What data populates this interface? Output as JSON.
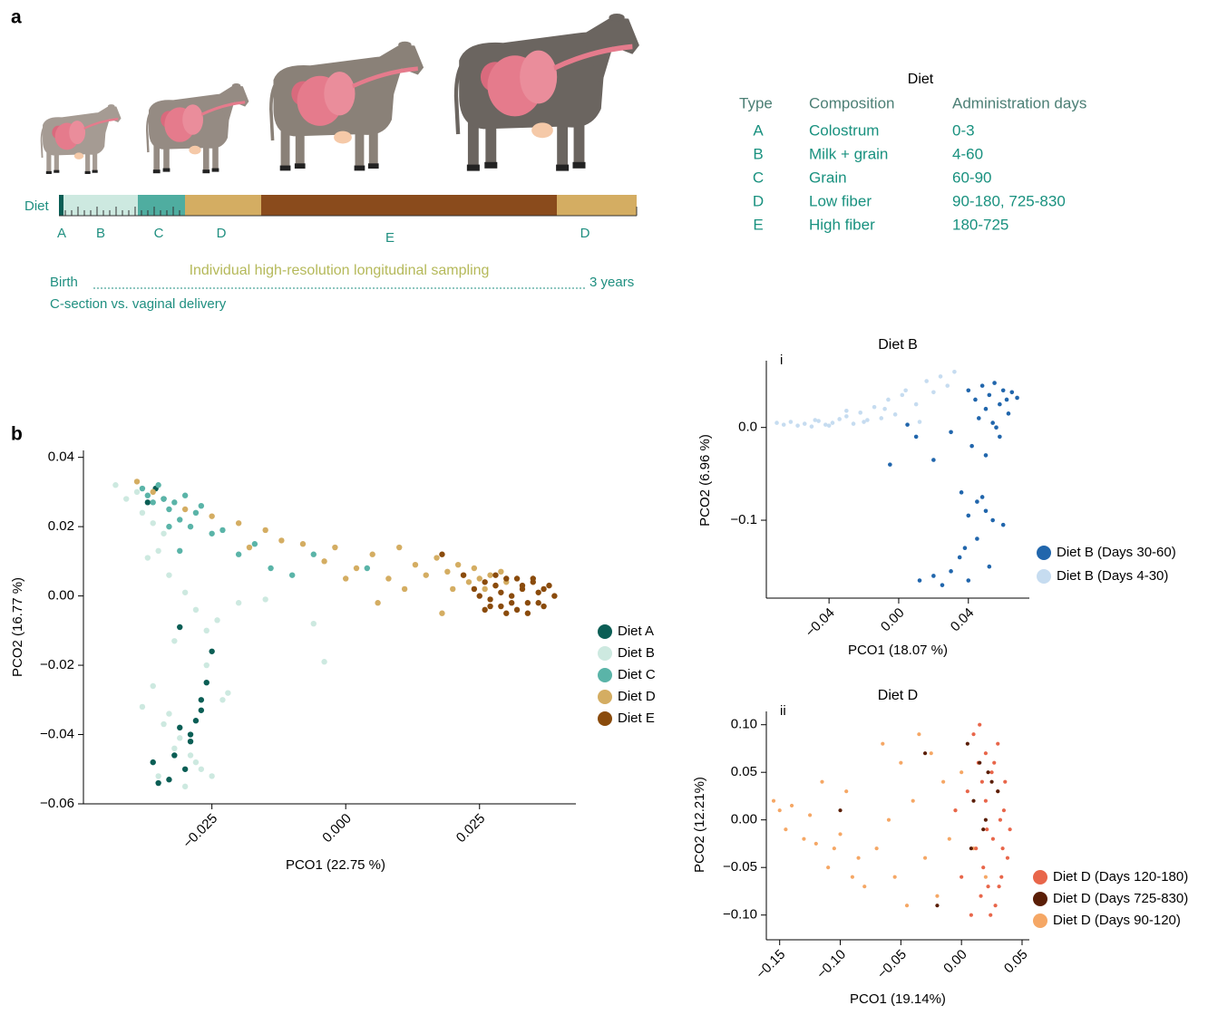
{
  "panel_a": {
    "label": "a",
    "timeline": {
      "label": "Diet",
      "segments": [
        {
          "label": "A",
          "color": "#0b5e55"
        },
        {
          "label": "B",
          "color": "#cde9e0"
        },
        {
          "label": "C",
          "color": "#4fada0"
        },
        {
          "label": "D",
          "color": "#d4ad62"
        },
        {
          "label": "E",
          "color": "#8a4b1c"
        },
        {
          "label": "D",
          "color": "#d4ad62"
        }
      ]
    },
    "span": {
      "start": "Birth",
      "caption": "Individual high-resolution longitudinal sampling",
      "end": "3 years",
      "note": "C-section vs. vaginal delivery"
    },
    "diet_table": {
      "title": "Diet",
      "columns": [
        "Type",
        "Composition",
        "Administration days"
      ],
      "rows": [
        [
          "A",
          "Colostrum",
          "0-3"
        ],
        [
          "B",
          "Milk + grain",
          "4-60"
        ],
        [
          "C",
          "Grain",
          "60-90"
        ],
        [
          "D",
          "Low fiber",
          "90-180, 725-830"
        ],
        [
          "E",
          "High fiber",
          "180-725"
        ]
      ]
    }
  },
  "panel_b": {
    "label": "b"
  },
  "chart_data": [
    {
      "type": "scatter",
      "xlabel": "PCO1 (22.75 %)",
      "ylabel": "PCO2 (16.77 %)",
      "xlim": [
        -0.049,
        0.043
      ],
      "ylim": [
        -0.06,
        0.042
      ],
      "xticks": [
        {
          "value": -0.025,
          "label": "−0.025"
        },
        {
          "value": 0,
          "label": "0.000"
        },
        0.025
      ],
      "yticks": [
        0.04,
        0.02,
        {
          "value": 0,
          "label": "0.00"
        },
        {
          "value": -0.02,
          "label": "−0.02"
        },
        {
          "value": -0.04,
          "label": "−0.04"
        },
        {
          "value": -0.06,
          "label": "−0.06"
        }
      ],
      "legend": "right",
      "series": [
        {
          "name": "Diet B",
          "color": "#cde9e0",
          "x": [
            -0.043,
            -0.041,
            -0.039,
            -0.038,
            -0.036,
            -0.034,
            -0.035,
            -0.033,
            -0.037,
            -0.03,
            -0.028,
            -0.032,
            -0.026,
            -0.024,
            -0.02,
            -0.015,
            -0.006,
            -0.004,
            -0.036,
            -0.033,
            -0.031,
            -0.029,
            -0.027,
            -0.025,
            -0.023,
            -0.034,
            -0.032,
            -0.03,
            -0.028,
            -0.038,
            -0.026,
            -0.022,
            -0.035
          ],
          "y": [
            0.032,
            0.028,
            0.03,
            0.024,
            0.021,
            0.018,
            0.013,
            0.006,
            0.011,
            0.001,
            -0.004,
            -0.013,
            -0.01,
            -0.007,
            -0.002,
            -0.001,
            -0.008,
            -0.019,
            -0.026,
            -0.034,
            -0.041,
            -0.046,
            -0.05,
            -0.052,
            -0.03,
            -0.037,
            -0.044,
            -0.055,
            -0.048,
            -0.032,
            -0.02,
            -0.028,
            -0.052
          ]
        },
        {
          "name": "Diet A",
          "color": "#0b5e55",
          "x": [
            -0.0355,
            -0.034,
            -0.037,
            -0.031,
            -0.029,
            -0.027,
            -0.026,
            -0.028,
            -0.032,
            -0.03,
            -0.033,
            -0.035,
            -0.029,
            -0.031,
            -0.027,
            -0.025,
            -0.036
          ],
          "y": [
            0.031,
            0.028,
            0.027,
            -0.009,
            -0.04,
            -0.03,
            -0.025,
            -0.036,
            -0.046,
            -0.05,
            -0.053,
            -0.054,
            -0.042,
            -0.038,
            -0.033,
            -0.016,
            -0.048
          ]
        },
        {
          "name": "Diet C",
          "color": "#5ab4a8",
          "x": [
            -0.038,
            -0.037,
            -0.036,
            -0.035,
            -0.034,
            -0.033,
            -0.032,
            -0.031,
            -0.03,
            -0.029,
            -0.028,
            -0.027,
            -0.025,
            -0.023,
            -0.02,
            -0.017,
            -0.014,
            -0.01,
            -0.006,
            0.004,
            -0.033,
            -0.031
          ],
          "y": [
            0.031,
            0.029,
            0.027,
            0.032,
            0.028,
            0.025,
            0.027,
            0.022,
            0.029,
            0.02,
            0.024,
            0.026,
            0.018,
            0.019,
            0.012,
            0.015,
            0.008,
            0.006,
            0.012,
            0.008,
            0.02,
            0.013
          ]
        },
        {
          "name": "Diet D",
          "color": "#d4ad62",
          "x": [
            -0.039,
            -0.036,
            -0.03,
            -0.025,
            -0.02,
            -0.018,
            -0.015,
            -0.012,
            -0.008,
            -0.004,
            -0.002,
            0.002,
            0.005,
            0.008,
            0.01,
            0.013,
            0.015,
            0.017,
            0.019,
            0.02,
            0.021,
            0.022,
            0.023,
            0.024,
            0.025,
            0.026,
            0.027,
            0.028,
            0.029,
            0.03,
            0.018,
            0.011,
            0.006,
            0.0
          ],
          "y": [
            0.033,
            0.03,
            0.025,
            0.023,
            0.021,
            0.014,
            0.019,
            0.016,
            0.015,
            0.01,
            0.014,
            0.008,
            0.012,
            0.005,
            0.014,
            0.009,
            0.006,
            0.011,
            0.007,
            0.002,
            0.009,
            0.006,
            0.004,
            0.008,
            0.005,
            0.002,
            0.006,
            0.003,
            0.007,
            0.004,
            -0.005,
            0.002,
            -0.002,
            0.005
          ]
        },
        {
          "name": "Diet E",
          "color": "#8a4b0c",
          "x": [
            0.018,
            0.022,
            0.024,
            0.026,
            0.027,
            0.028,
            0.029,
            0.03,
            0.031,
            0.032,
            0.033,
            0.034,
            0.035,
            0.036,
            0.037,
            0.038,
            0.039,
            0.026,
            0.028,
            0.03,
            0.032,
            0.034,
            0.036,
            0.025,
            0.029,
            0.033,
            0.037,
            0.031,
            0.035,
            0.027
          ],
          "y": [
            0.012,
            0.006,
            0.002,
            0.004,
            -0.001,
            0.003,
            -0.003,
            0.005,
            0.0,
            -0.004,
            0.002,
            -0.002,
            0.004,
            0.001,
            -0.003,
            0.003,
            0.0,
            -0.004,
            0.006,
            -0.005,
            0.005,
            -0.005,
            -0.002,
            0.0,
            0.001,
            0.003,
            0.002,
            -0.002,
            0.005,
            -0.003
          ]
        }
      ]
    },
    {
      "type": "scatter",
      "title": "Diet B",
      "panel_label": "i",
      "xlabel": "PCO1 (18.07 %)",
      "ylabel": "PCO2 (6.96 %)",
      "xlim": [
        -0.076,
        0.075
      ],
      "ylim": [
        -0.184,
        0.072
      ],
      "xticks": [
        {
          "value": -0.04,
          "label": "−0.04"
        },
        {
          "value": 0,
          "label": "0.00"
        },
        0.04
      ],
      "yticks": [
        {
          "value": 0,
          "label": "0.0"
        },
        {
          "value": -0.1,
          "label": "−0.1"
        }
      ],
      "legend": "lower right",
      "series": [
        {
          "name": "Diet B (Days 4-30)",
          "color": "#c6dcf0",
          "x": [
            -0.07,
            -0.066,
            -0.062,
            -0.058,
            -0.054,
            -0.05,
            -0.046,
            -0.042,
            -0.038,
            -0.034,
            -0.03,
            -0.026,
            -0.022,
            -0.018,
            -0.014,
            -0.01,
            -0.006,
            -0.002,
            0.004,
            0.01,
            0.016,
            0.02,
            0.024,
            0.028,
            0.032,
            -0.048,
            -0.04,
            -0.03,
            -0.02,
            -0.008,
            0.002,
            0.012
          ],
          "y": [
            0.005,
            0.003,
            0.006,
            0.002,
            0.004,
            0.001,
            0.007,
            0.003,
            0.005,
            0.009,
            0.012,
            0.004,
            0.016,
            0.008,
            0.022,
            0.01,
            0.03,
            0.014,
            0.04,
            0.025,
            0.05,
            0.038,
            0.055,
            0.045,
            0.06,
            0.008,
            0.002,
            0.018,
            0.006,
            0.02,
            0.035,
            0.006
          ]
        },
        {
          "name": "Diet B (Days 30-60)",
          "color": "#2166ac",
          "x": [
            0.04,
            0.044,
            0.048,
            0.05,
            0.052,
            0.055,
            0.058,
            0.06,
            0.062,
            0.065,
            0.068,
            0.046,
            0.054,
            0.058,
            0.063,
            0.042,
            0.05,
            0.056,
            0.03,
            0.02,
            0.01,
            0.005,
            -0.005,
            0.036,
            0.045,
            0.04,
            0.05,
            0.054,
            0.06,
            0.035,
            0.045,
            0.052,
            0.04,
            0.03,
            0.02,
            0.012,
            0.025,
            0.048,
            0.038
          ],
          "y": [
            0.04,
            0.03,
            0.045,
            0.02,
            0.035,
            0.048,
            0.025,
            0.04,
            0.03,
            0.038,
            0.032,
            0.01,
            0.005,
            -0.01,
            0.015,
            -0.02,
            -0.03,
            0.0,
            -0.005,
            -0.035,
            -0.01,
            0.003,
            -0.04,
            -0.07,
            -0.08,
            -0.095,
            -0.09,
            -0.1,
            -0.105,
            -0.14,
            -0.12,
            -0.15,
            -0.165,
            -0.155,
            -0.16,
            -0.165,
            -0.17,
            -0.075,
            -0.13
          ]
        }
      ]
    },
    {
      "type": "scatter",
      "title": "Diet D",
      "panel_label": "ii",
      "xlabel": "PCO1 (19.14%)",
      "ylabel": "PCO2 (12.21%)",
      "xlim": [
        -0.161,
        0.056
      ],
      "ylim": [
        -0.126,
        0.114
      ],
      "xticks": [
        {
          "value": -0.15,
          "label": "−0.15"
        },
        {
          "value": -0.1,
          "label": "−0.10"
        },
        {
          "value": -0.05,
          "label": "−0.05"
        },
        {
          "value": 0,
          "label": "0.00"
        },
        0.05
      ],
      "yticks": [
        {
          "value": 0.1,
          "label": "0.10"
        },
        0.05,
        {
          "value": 0,
          "label": "0.00"
        },
        {
          "value": -0.05,
          "label": "−0.05"
        },
        {
          "value": -0.1,
          "label": "−0.10"
        }
      ],
      "legend": "lower right",
      "series": [
        {
          "name": "Diet D (Days 90-120)",
          "color": "#f5a765",
          "x": [
            -0.155,
            -0.15,
            -0.145,
            -0.14,
            -0.13,
            -0.125,
            -0.115,
            -0.11,
            -0.105,
            -0.1,
            -0.095,
            -0.09,
            -0.085,
            -0.08,
            -0.07,
            -0.06,
            -0.055,
            -0.05,
            -0.045,
            -0.04,
            -0.035,
            -0.03,
            -0.025,
            -0.02,
            -0.015,
            -0.01,
            -0.005,
            0.0,
            0.01,
            0.02,
            -0.12,
            -0.065
          ],
          "y": [
            0.02,
            0.01,
            -0.01,
            0.015,
            -0.02,
            0.005,
            0.04,
            -0.05,
            -0.03,
            -0.015,
            0.03,
            -0.06,
            -0.04,
            -0.07,
            -0.03,
            0.0,
            -0.06,
            0.06,
            -0.09,
            0.02,
            0.09,
            -0.04,
            0.07,
            -0.08,
            0.04,
            -0.02,
            0.01,
            0.05,
            -0.03,
            -0.06,
            -0.025,
            0.08
          ]
        },
        {
          "name": "Diet D (Days 120-180)",
          "color": "#e8664a",
          "x": [
            0.01,
            0.015,
            0.02,
            0.025,
            0.03,
            0.035,
            0.04,
            0.012,
            0.018,
            0.022,
            0.028,
            0.033,
            0.038,
            0.014,
            0.02,
            0.026,
            0.032,
            0.036,
            0.016,
            0.024,
            0.03,
            0.034,
            0.005,
            0.0,
            -0.005,
            0.008,
            0.027,
            0.021,
            0.031,
            0.017
          ],
          "y": [
            0.09,
            0.1,
            0.07,
            0.05,
            0.03,
            0.01,
            -0.01,
            -0.03,
            -0.05,
            -0.07,
            -0.09,
            -0.06,
            -0.04,
            0.06,
            0.02,
            -0.02,
            0.0,
            0.04,
            -0.08,
            -0.1,
            0.08,
            -0.03,
            0.03,
            -0.06,
            0.01,
            -0.1,
            0.06,
            -0.01,
            -0.07,
            0.04
          ]
        },
        {
          "name": "Diet D (Days 725-830)",
          "color": "#5a1e06",
          "x": [
            0.005,
            0.015,
            0.025,
            0.01,
            0.02,
            -0.03,
            -0.1,
            -0.02,
            0.018,
            0.03,
            0.008,
            0.022
          ],
          "y": [
            0.08,
            0.06,
            0.04,
            0.02,
            0.0,
            0.07,
            0.01,
            -0.09,
            -0.01,
            0.03,
            -0.03,
            0.05
          ]
        }
      ]
    }
  ]
}
